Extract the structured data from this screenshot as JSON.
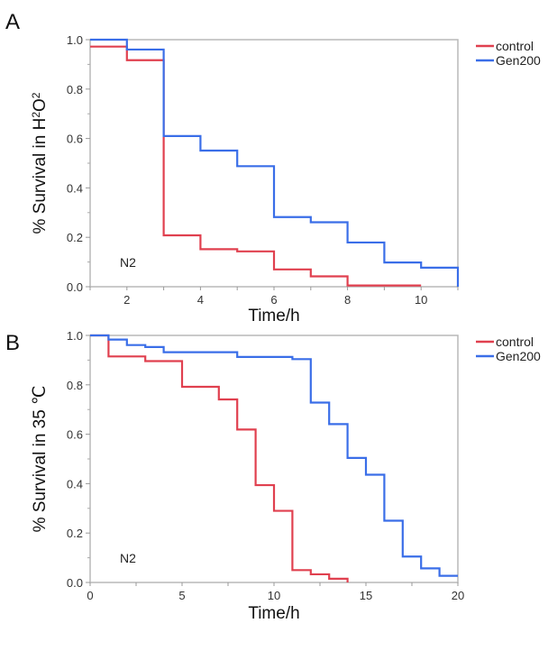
{
  "chart_data": [
    {
      "type": "line",
      "panel_label": "A",
      "title": "",
      "xlabel": "Time/h",
      "ylabel": "% Survival in H2O2",
      "ylabel_parts": [
        "% Survival in H",
        "2",
        "O",
        "2"
      ],
      "xlim": [
        1,
        11
      ],
      "ylim": [
        0,
        1.0
      ],
      "xticks": [
        2,
        4,
        6,
        8,
        10
      ],
      "yticks": [
        "0.0",
        "0.2",
        "0.4",
        "0.6",
        "0.8",
        "1.0"
      ],
      "annotation": "N2",
      "legend_position": "top-right",
      "step": true,
      "series": [
        {
          "name": "control",
          "color": "#e0404f",
          "x": [
            1,
            2,
            3,
            4,
            5,
            6,
            7,
            8,
            10
          ],
          "y": [
            0.972,
            0.917,
            0.208,
            0.152,
            0.143,
            0.07,
            0.042,
            0.005,
            0.005
          ]
        },
        {
          "name": "Gen200",
          "color": "#3a6ee8",
          "x": [
            1,
            2,
            3,
            4,
            5,
            6,
            7,
            8,
            9,
            10,
            11
          ],
          "y": [
            1.0,
            0.96,
            0.61,
            0.551,
            0.488,
            0.282,
            0.261,
            0.179,
            0.098,
            0.077,
            0.0
          ]
        }
      ]
    },
    {
      "type": "line",
      "panel_label": "B",
      "title": "",
      "xlabel": "Time/h",
      "ylabel": "% Survival in 35 ℃",
      "xlim": [
        0,
        20
      ],
      "ylim": [
        0,
        1.0
      ],
      "xticks": [
        0,
        5,
        10,
        15,
        20
      ],
      "yticks": [
        "0.0",
        "0.2",
        "0.4",
        "0.6",
        "0.8",
        "1.0"
      ],
      "annotation": "N2",
      "legend_position": "top-right",
      "step": true,
      "series": [
        {
          "name": "control",
          "color": "#e0404f",
          "x": [
            0,
            1,
            3,
            5,
            7,
            8,
            9,
            10,
            11,
            12,
            13,
            14
          ],
          "y": [
            1.0,
            0.915,
            0.896,
            0.792,
            0.741,
            0.619,
            0.394,
            0.29,
            0.05,
            0.033,
            0.015,
            0.0
          ]
        },
        {
          "name": "Gen200",
          "color": "#3a6ee8",
          "x": [
            0,
            1,
            2,
            3,
            4,
            8,
            11,
            12,
            13,
            14,
            15,
            16,
            17,
            18,
            19,
            20
          ],
          "y": [
            1.0,
            0.983,
            0.961,
            0.953,
            0.932,
            0.913,
            0.904,
            0.728,
            0.641,
            0.504,
            0.436,
            0.25,
            0.105,
            0.057,
            0.027,
            0.027
          ]
        }
      ]
    }
  ]
}
